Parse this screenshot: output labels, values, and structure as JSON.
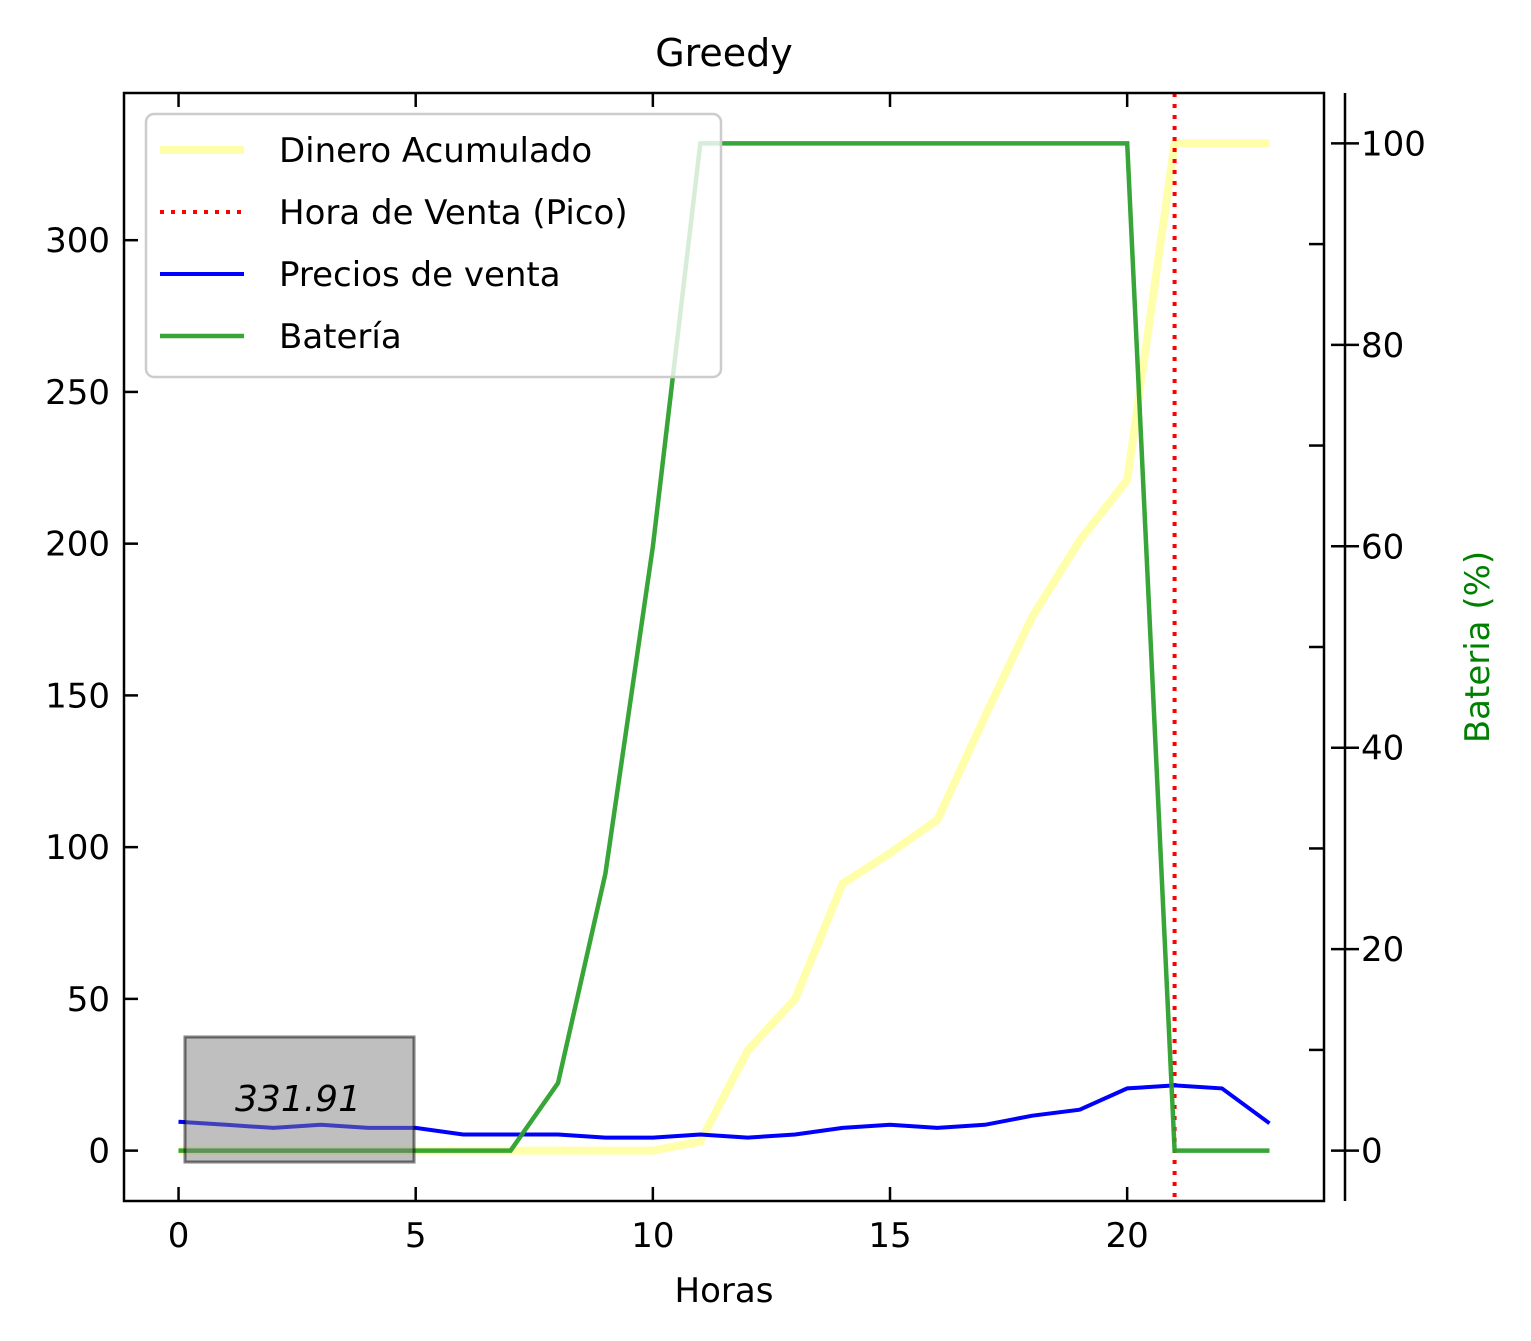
{
  "chart_data": {
    "type": "line",
    "title": "Greedy",
    "xlabel": "Horas",
    "ylabel": "",
    "y2label": "Bateria (%)",
    "xlim": [
      -1.15,
      24.15
    ],
    "ylim": [
      -16.6,
      348.5
    ],
    "y2lim": [
      -5,
      105
    ],
    "xticks": [
      0,
      5,
      10,
      15,
      20
    ],
    "yticks": [
      0,
      50,
      100,
      150,
      200,
      250,
      300
    ],
    "y2ticks": [
      0,
      20,
      40,
      60,
      80,
      100
    ],
    "legend_position": "upper-left",
    "annotation": "331.91",
    "series": [
      {
        "name": "Dinero Acumulado",
        "axis": "left",
        "style": "solid",
        "color": "#ffff66",
        "x": [
          0,
          1,
          2,
          3,
          4,
          5,
          6,
          7,
          8,
          9,
          10,
          11,
          12,
          13,
          14,
          15,
          16,
          17,
          18,
          19,
          20,
          21,
          22,
          23
        ],
        "y": [
          0,
          0,
          0,
          0,
          0,
          0,
          0,
          0,
          0,
          0,
          0,
          3,
          33,
          50,
          88,
          98,
          109,
          143,
          176,
          201,
          221,
          332,
          332,
          332
        ]
      },
      {
        "name": "Hora de Venta (Pico)",
        "axis": "vline",
        "style": "dotted",
        "color": "#ff0000",
        "x": 21
      },
      {
        "name": "Precios de venta",
        "axis": "left",
        "style": "solid",
        "color": "#0000ff",
        "x": [
          0,
          1,
          2,
          3,
          4,
          5,
          6,
          7,
          8,
          9,
          10,
          11,
          12,
          13,
          14,
          15,
          16,
          17,
          18,
          19,
          20,
          21,
          22,
          23
        ],
        "y": [
          9.5,
          8.5,
          7.5,
          8.5,
          7.5,
          7.5,
          5.3,
          5.3,
          5.3,
          4.3,
          4.3,
          5.3,
          4.3,
          5.3,
          7.5,
          8.5,
          7.5,
          8.5,
          11.5,
          13.5,
          20.5,
          21.5,
          20.5,
          9
        ]
      },
      {
        "name": "Batería",
        "axis": "right",
        "style": "solid",
        "color": "#2ca02c",
        "x": [
          0,
          1,
          2,
          3,
          4,
          5,
          6,
          7,
          8,
          9,
          10,
          11,
          12,
          13,
          14,
          15,
          16,
          17,
          18,
          19,
          20,
          21,
          22,
          23
        ],
        "y": [
          0,
          0,
          0,
          0,
          0,
          0,
          0,
          0,
          6.7,
          27.5,
          60,
          100,
          100,
          100,
          100,
          100,
          100,
          100,
          100,
          100,
          100,
          0,
          0,
          0
        ]
      }
    ]
  }
}
